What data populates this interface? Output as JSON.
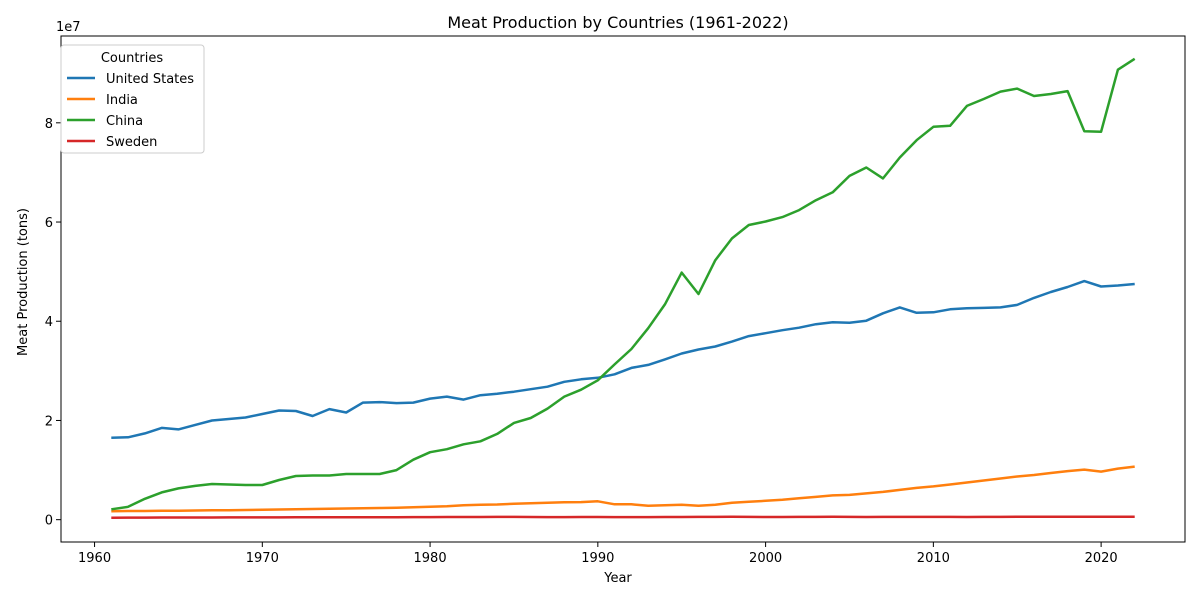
{
  "chart_data": {
    "type": "line",
    "title": "Meat Production by Countries (1961-2022)",
    "xlabel": "Year",
    "ylabel": "Meat Production (tons)",
    "y_exponent_label": "1e7",
    "xlim": [
      1958,
      2025
    ],
    "ylim": [
      -4500000,
      97500000
    ],
    "x_ticks": [
      1960,
      1970,
      1980,
      1990,
      2000,
      2010,
      2020
    ],
    "y_ticks": [
      0,
      20000000,
      40000000,
      60000000,
      80000000
    ],
    "y_tick_labels": [
      "0",
      "2",
      "4",
      "6",
      "8"
    ],
    "grid": false,
    "legend": {
      "title": "Countries",
      "position": "top-left"
    },
    "x": [
      1961,
      1962,
      1963,
      1964,
      1965,
      1966,
      1967,
      1968,
      1969,
      1970,
      1971,
      1972,
      1973,
      1974,
      1975,
      1976,
      1977,
      1978,
      1979,
      1980,
      1981,
      1982,
      1983,
      1984,
      1985,
      1986,
      1987,
      1988,
      1989,
      1990,
      1991,
      1992,
      1993,
      1994,
      1995,
      1996,
      1997,
      1998,
      1999,
      2000,
      2001,
      2002,
      2003,
      2004,
      2005,
      2006,
      2007,
      2008,
      2009,
      2010,
      2011,
      2012,
      2013,
      2014,
      2015,
      2016,
      2017,
      2018,
      2019,
      2020,
      2021,
      2022
    ],
    "series": [
      {
        "name": "United States",
        "color": "#1f77b4",
        "values": [
          16500000,
          16600000,
          17400000,
          18500000,
          18200000,
          19100000,
          20000000,
          20300000,
          20600000,
          21300000,
          22000000,
          21900000,
          20900000,
          22300000,
          21600000,
          23600000,
          23700000,
          23500000,
          23600000,
          24400000,
          24800000,
          24200000,
          25100000,
          25400000,
          25800000,
          26300000,
          26800000,
          27800000,
          28300000,
          28600000,
          29300000,
          30600000,
          31200000,
          32300000,
          33500000,
          34300000,
          34900000,
          35900000,
          37000000,
          37600000,
          38200000,
          38700000,
          39400000,
          39800000,
          39700000,
          40100000,
          41600000,
          42800000,
          41700000,
          41800000,
          42400000,
          42600000,
          42700000,
          42800000,
          43300000,
          44700000,
          45900000,
          46900000,
          48100000,
          47000000,
          47200000,
          47500000
        ]
      },
      {
        "name": "India",
        "color": "#ff7f0e",
        "values": [
          1700000,
          1750000,
          1750000,
          1800000,
          1800000,
          1850000,
          1900000,
          1900000,
          1950000,
          2000000,
          2050000,
          2100000,
          2150000,
          2200000,
          2250000,
          2300000,
          2350000,
          2400000,
          2500000,
          2600000,
          2700000,
          2900000,
          3000000,
          3050000,
          3200000,
          3300000,
          3400000,
          3500000,
          3550000,
          3700000,
          3100000,
          3100000,
          2800000,
          2900000,
          3000000,
          2800000,
          3000000,
          3400000,
          3600000,
          3800000,
          4000000,
          4300000,
          4600000,
          4900000,
          5000000,
          5300000,
          5600000,
          6000000,
          6400000,
          6700000,
          7100000,
          7500000,
          7900000,
          8300000,
          8700000,
          9000000,
          9400000,
          9800000,
          10100000,
          9700000,
          10300000,
          10700000
        ]
      },
      {
        "name": "China",
        "color": "#2ca02c",
        "values": [
          2100000,
          2600000,
          4200000,
          5500000,
          6300000,
          6800000,
          7200000,
          7100000,
          7000000,
          7000000,
          8000000,
          8800000,
          8900000,
          8900000,
          9200000,
          9200000,
          9200000,
          10000000,
          12100000,
          13600000,
          14200000,
          15200000,
          15800000,
          17300000,
          19500000,
          20500000,
          22400000,
          24800000,
          26200000,
          28100000,
          31300000,
          34400000,
          38600000,
          43400000,
          49800000,
          45500000,
          52300000,
          56700000,
          59400000,
          60100000,
          61000000,
          62400000,
          64400000,
          66000000,
          69300000,
          71000000,
          68800000,
          73000000,
          76500000,
          79200000,
          79400000,
          83400000,
          84800000,
          86300000,
          86900000,
          85400000,
          85800000,
          86400000,
          78300000,
          78200000,
          90700000,
          92900000
        ]
      },
      {
        "name": "Sweden",
        "color": "#d62728",
        "values": [
          400000,
          410000,
          420000,
          430000,
          430000,
          440000,
          440000,
          450000,
          450000,
          460000,
          460000,
          470000,
          470000,
          480000,
          480000,
          490000,
          500000,
          500000,
          510000,
          520000,
          530000,
          540000,
          540000,
          550000,
          550000,
          540000,
          520000,
          520000,
          530000,
          530000,
          520000,
          510000,
          520000,
          530000,
          540000,
          550000,
          560000,
          570000,
          560000,
          540000,
          540000,
          550000,
          560000,
          570000,
          550000,
          540000,
          550000,
          550000,
          550000,
          560000,
          560000,
          540000,
          550000,
          560000,
          570000,
          570000,
          570000,
          570000,
          570000,
          580000,
          590000,
          590000
        ]
      }
    ]
  }
}
